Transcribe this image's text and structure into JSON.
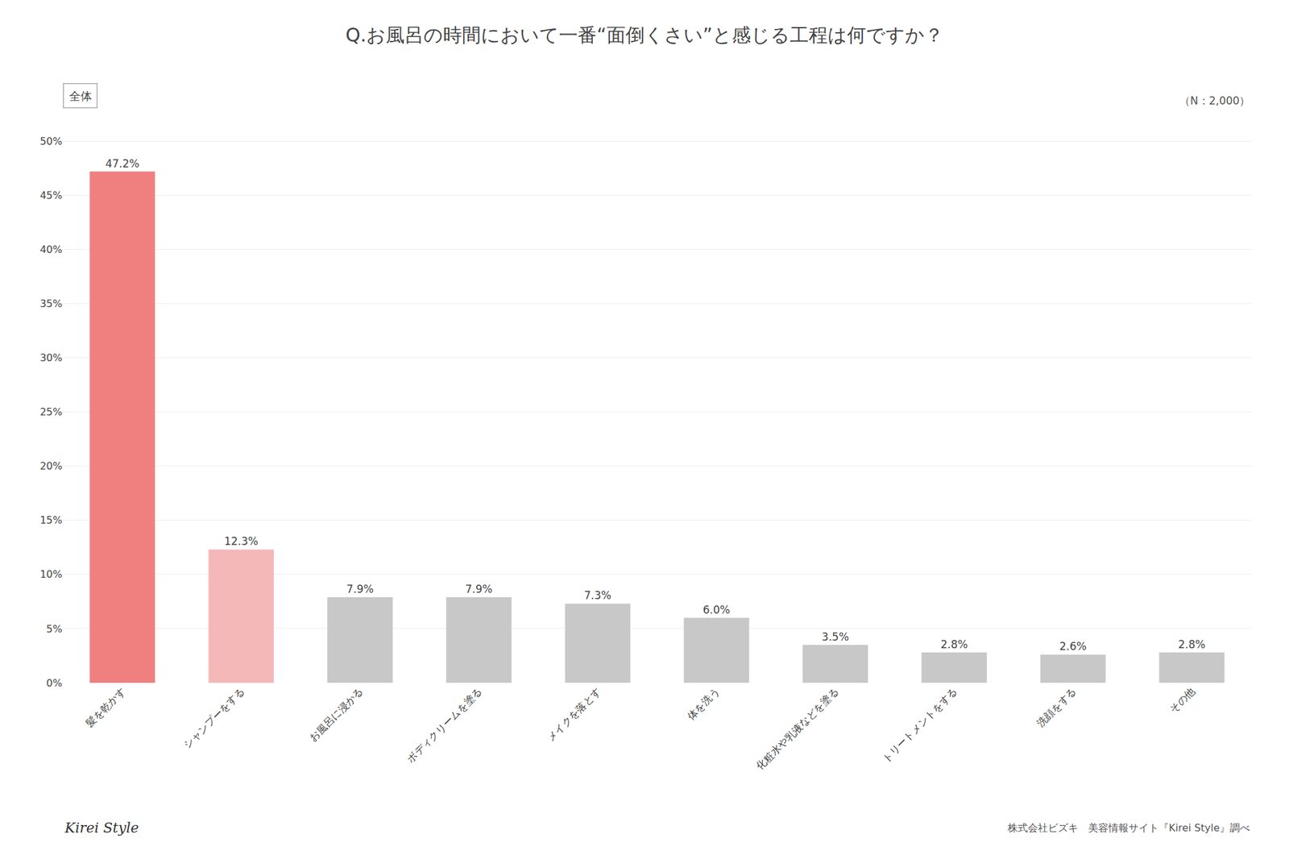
{
  "chart_data": {
    "type": "bar",
    "title": "Q.お風呂の時間において一番“面倒くさい”と感じる工程は何ですか？",
    "subtitle": "（N：2,000）",
    "annotations": [
      "全体",
      "Kirei Style",
      "株式会社ビズキ　美容情報サイト『Kirei Style』調べ"
    ],
    "categories": [
      "髪を乾かす",
      "シャンプーをする",
      "お風呂に浸かる",
      "ボディクリームを塗る",
      "メイクを落とす",
      "体を洗う",
      "化粧水や乳液などを塗る",
      "トリートメントをする",
      "洗顔をする",
      "その他"
    ],
    "values": [
      47.2,
      12.3,
      7.9,
      7.9,
      7.3,
      6.0,
      3.5,
      2.8,
      2.6,
      2.8
    ],
    "value_labels": [
      "47.2%",
      "12.3%",
      "7.9%",
      "7.9%",
      "7.3%",
      "6.0%",
      "3.5%",
      "2.8%",
      "2.6%",
      "2.8%"
    ],
    "colors": [
      "#f08080",
      "#f5b8b8",
      "#c8c8c8",
      "#c8c8c8",
      "#c8c8c8",
      "#c8c8c8",
      "#c8c8c8",
      "#c8c8c8",
      "#c8c8c8",
      "#c8c8c8"
    ],
    "ylim": [
      0,
      52
    ],
    "yticks": [
      {
        "value": 0,
        "label": "0%"
      },
      {
        "value": 5,
        "label": "5%"
      },
      {
        "value": 10,
        "label": "10%"
      },
      {
        "value": 15,
        "label": "15%"
      },
      {
        "value": 20,
        "label": "20%"
      },
      {
        "value": 25,
        "label": "25%"
      },
      {
        "value": 30,
        "label": "30%"
      },
      {
        "value": 35,
        "label": "35%"
      },
      {
        "value": 40,
        "label": "40%"
      },
      {
        "value": 45,
        "label": "45%"
      },
      {
        "value": 50,
        "label": "50%"
      }
    ],
    "grid": true,
    "data_labels": true
  }
}
